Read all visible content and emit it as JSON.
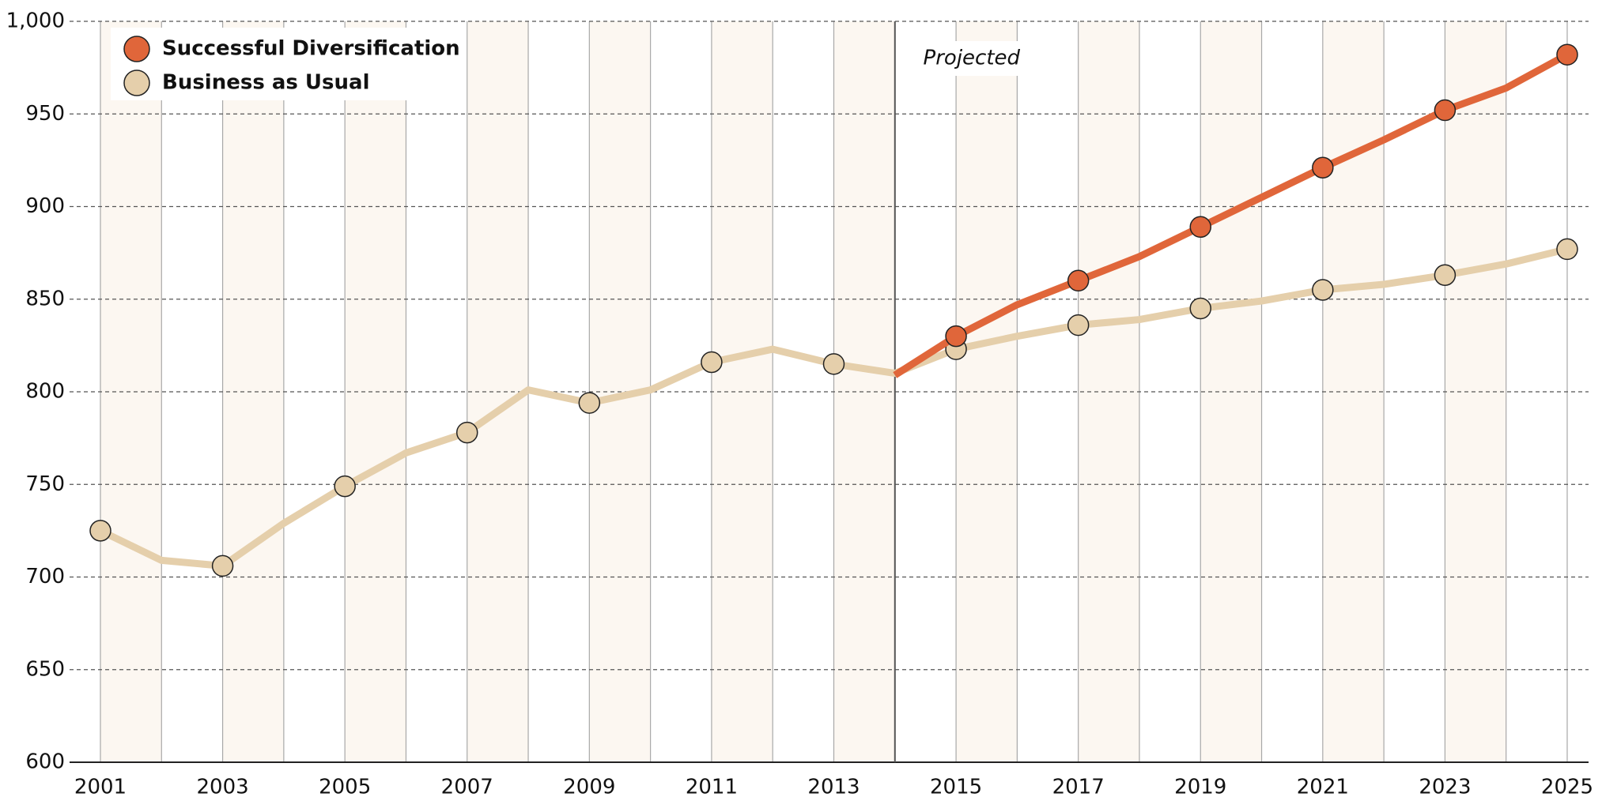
{
  "chart_data": {
    "type": "line",
    "categories": [
      "2001",
      null,
      "2003",
      null,
      "2005",
      null,
      "2007",
      null,
      "2009",
      null,
      "2011",
      null,
      "2013",
      null,
      "2015",
      null,
      "2017",
      null,
      "2019",
      null,
      "2021",
      null,
      "2023",
      null,
      "2025"
    ],
    "series": [
      {
        "name": "Successful Diversification",
        "color": "#e0663a",
        "values": [
          null,
          null,
          null,
          null,
          null,
          null,
          null,
          null,
          null,
          null,
          null,
          null,
          null,
          809,
          830,
          847,
          860,
          873,
          889,
          905,
          921,
          936,
          952,
          964,
          982
        ]
      },
      {
        "name": "Business as Usual",
        "color": "#e5cfab",
        "values": [
          725,
          709,
          706,
          729,
          749,
          767,
          778,
          801,
          794,
          801,
          816,
          823,
          815,
          810,
          823,
          830,
          836,
          839,
          845,
          849,
          855,
          858,
          863,
          869,
          877
        ]
      }
    ],
    "ylim": [
      600,
      1000
    ],
    "yticks": [
      600,
      650,
      700,
      750,
      800,
      850,
      900,
      950,
      {
        "value": 1000,
        "label": "1,000"
      }
    ],
    "grid": true,
    "legend": "upper-left",
    "annotations": [
      {
        "text": "Projected"
      }
    ]
  }
}
